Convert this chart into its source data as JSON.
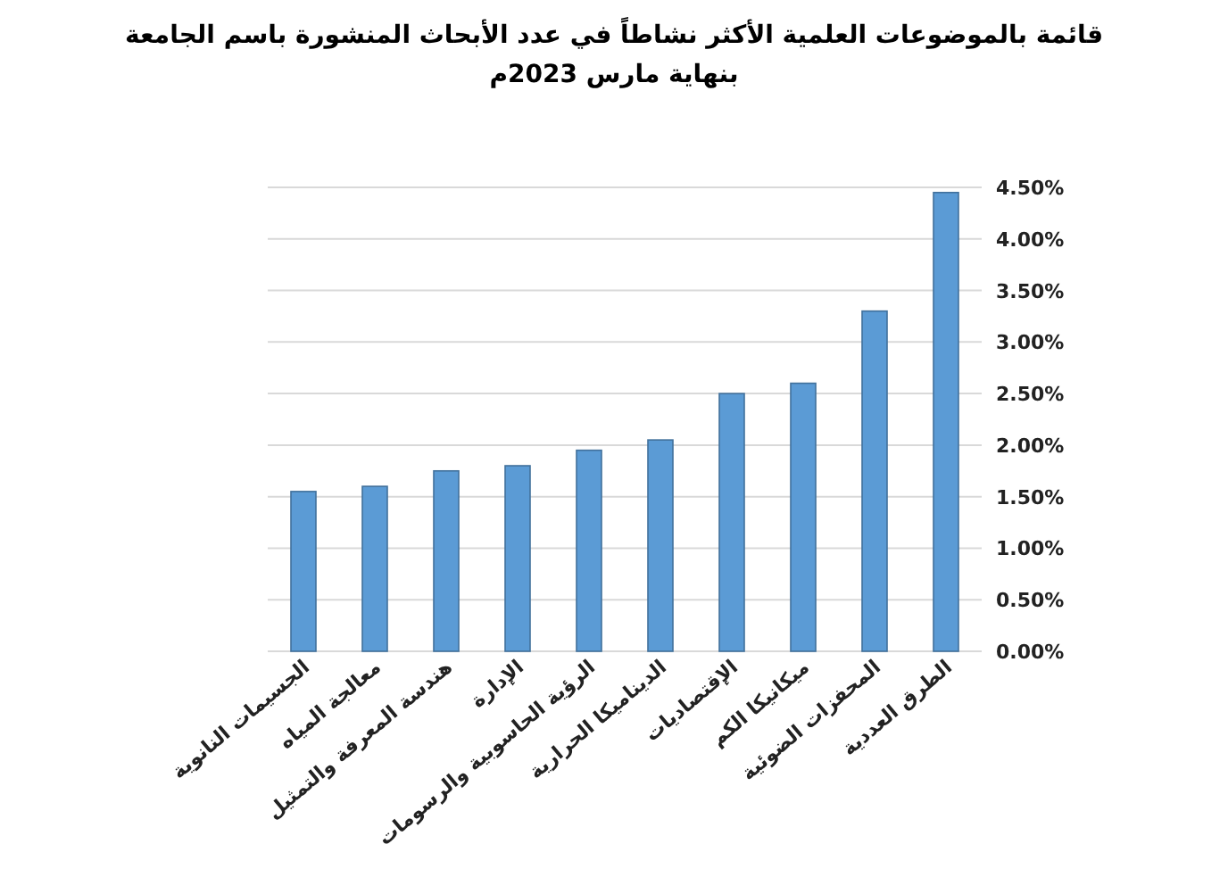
{
  "chart_data": {
    "type": "bar",
    "title": "قائمة بالموضوعات العلمية الأكثر نشاطاً في عدد الأبحاث المنشورة باسم الجامعة بنهاية مارس 2023م",
    "categories": [
      "الجسيمات النانوية",
      "معالجة المياه",
      "هندسة المعرفة والتمثيل",
      "الإدارة",
      "الرؤية الحاسوبية والرسومات",
      "الديناميكا الحرارية",
      "الإقتصاديات",
      "ميكانيكا الكم",
      "المحفزات الضوئية",
      "الطرق العددية"
    ],
    "values": [
      1.55,
      1.6,
      1.75,
      1.8,
      1.95,
      2.05,
      2.5,
      2.6,
      3.3,
      4.45
    ],
    "color": "#5b9bd5",
    "ylim": [
      0,
      4.5
    ],
    "yticks": [
      {
        "value": 0,
        "label": "0.00%"
      },
      {
        "value": 0.5,
        "label": "0.50%"
      },
      {
        "value": 1,
        "label": "1.00%"
      },
      {
        "value": 1.5,
        "label": "1.50%"
      },
      {
        "value": 2,
        "label": "2.00%"
      },
      {
        "value": 2.5,
        "label": "2.50%"
      },
      {
        "value": 3,
        "label": "3.00%"
      },
      {
        "value": 3.5,
        "label": "3.50%"
      },
      {
        "value": 4,
        "label": "4.00%"
      },
      {
        "value": 4.5,
        "label": "4.50%"
      }
    ],
    "grid": "y"
  }
}
